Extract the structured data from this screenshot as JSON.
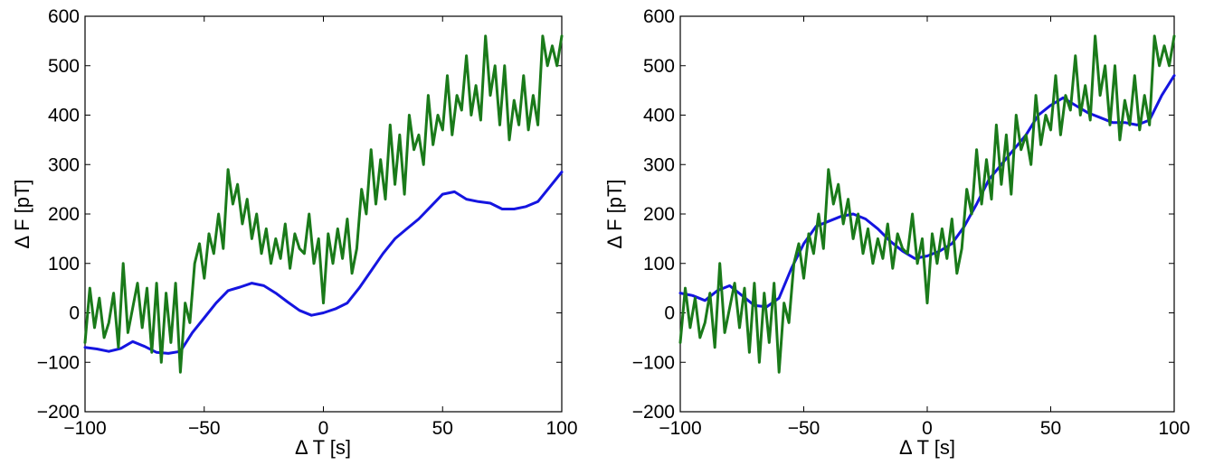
{
  "chart_data": [
    {
      "type": "line",
      "xlabel": "Δ T [s]",
      "ylabel": "Δ F [pT]",
      "xlim": [
        -100,
        100
      ],
      "ylim": [
        -200,
        600
      ],
      "xticks": [
        -100,
        -50,
        0,
        50,
        100
      ],
      "yticks": [
        -200,
        -100,
        0,
        100,
        200,
        300,
        400,
        500,
        600
      ],
      "xtick_labels": [
        "−100",
        "−50",
        "0",
        "50",
        "100"
      ],
      "ytick_labels": [
        "−200",
        "−100",
        "0",
        "100",
        "200",
        "300",
        "400",
        "500",
        "600"
      ],
      "grid": false,
      "series": [
        {
          "color": "#1515e0",
          "x": [
            -100,
            -95,
            -90,
            -85,
            -80,
            -75,
            -70,
            -65,
            -60,
            -55,
            -50,
            -45,
            -40,
            -35,
            -30,
            -25,
            -20,
            -15,
            -10,
            -5,
            0,
            5,
            10,
            15,
            20,
            25,
            30,
            35,
            40,
            45,
            50,
            55,
            60,
            65,
            70,
            75,
            80,
            85,
            90,
            95,
            100
          ],
          "y": [
            -70,
            -73,
            -78,
            -72,
            -58,
            -68,
            -80,
            -82,
            -78,
            -40,
            -10,
            20,
            45,
            52,
            60,
            55,
            40,
            22,
            5,
            -5,
            0,
            8,
            20,
            50,
            85,
            120,
            150,
            170,
            190,
            215,
            240,
            245,
            230,
            225,
            222,
            210,
            210,
            215,
            225,
            255,
            285
          ]
        },
        {
          "color": "#1a7a1a",
          "x": [
            -100,
            -98,
            -96,
            -94,
            -92,
            -90,
            -88,
            -86,
            -84,
            -82,
            -80,
            -78,
            -76,
            -74,
            -72,
            -70,
            -68,
            -66,
            -64,
            -62,
            -60,
            -58,
            -56,
            -54,
            -52,
            -50,
            -48,
            -46,
            -44,
            -42,
            -40,
            -38,
            -36,
            -34,
            -32,
            -30,
            -28,
            -26,
            -24,
            -22,
            -20,
            -18,
            -16,
            -14,
            -12,
            -10,
            -8,
            -6,
            -4,
            -2,
            0,
            2,
            4,
            6,
            8,
            10,
            12,
            14,
            16,
            18,
            20,
            22,
            24,
            26,
            28,
            30,
            32,
            34,
            36,
            38,
            40,
            42,
            44,
            46,
            48,
            50,
            52,
            54,
            56,
            58,
            60,
            62,
            64,
            66,
            68,
            70,
            72,
            74,
            76,
            78,
            80,
            82,
            84,
            86,
            88,
            90,
            92,
            94,
            96,
            98,
            100
          ],
          "y": [
            -60,
            50,
            -30,
            30,
            -50,
            -20,
            40,
            -70,
            100,
            -40,
            10,
            60,
            -30,
            50,
            -80,
            60,
            -100,
            40,
            -60,
            60,
            -120,
            20,
            -20,
            100,
            140,
            70,
            160,
            120,
            200,
            130,
            290,
            220,
            260,
            180,
            230,
            150,
            200,
            120,
            170,
            100,
            150,
            110,
            180,
            90,
            160,
            130,
            120,
            200,
            100,
            150,
            20,
            160,
            100,
            170,
            110,
            190,
            80,
            130,
            250,
            200,
            330,
            220,
            310,
            230,
            380,
            260,
            360,
            240,
            400,
            330,
            360,
            300,
            440,
            340,
            400,
            370,
            480,
            360,
            440,
            410,
            520,
            400,
            460,
            390,
            560,
            440,
            500,
            380,
            500,
            350,
            430,
            380,
            480,
            370,
            440,
            380,
            560,
            500,
            540,
            500,
            560
          ]
        }
      ]
    },
    {
      "type": "line",
      "xlabel": "Δ T [s]",
      "ylabel": "Δ F [pT]",
      "xlim": [
        -100,
        100
      ],
      "ylim": [
        -200,
        600
      ],
      "xticks": [
        -100,
        -50,
        0,
        50,
        100
      ],
      "yticks": [
        -200,
        -100,
        0,
        100,
        200,
        300,
        400,
        500,
        600
      ],
      "xtick_labels": [
        "−100",
        "−50",
        "0",
        "50",
        "100"
      ],
      "ytick_labels": [
        "−200",
        "−100",
        "0",
        "100",
        "200",
        "300",
        "400",
        "500",
        "600"
      ],
      "grid": false,
      "series": [
        {
          "color": "#1515e0",
          "x": [
            -100,
            -95,
            -90,
            -85,
            -80,
            -75,
            -70,
            -65,
            -60,
            -55,
            -50,
            -45,
            -40,
            -35,
            -30,
            -25,
            -20,
            -15,
            -10,
            -5,
            0,
            5,
            10,
            15,
            20,
            25,
            30,
            35,
            40,
            45,
            50,
            55,
            60,
            65,
            70,
            75,
            80,
            85,
            90,
            95,
            100
          ],
          "y": [
            40,
            35,
            25,
            45,
            55,
            35,
            15,
            12,
            30,
            90,
            140,
            175,
            185,
            195,
            200,
            190,
            170,
            145,
            125,
            110,
            115,
            125,
            140,
            175,
            220,
            270,
            300,
            330,
            360,
            400,
            420,
            435,
            420,
            405,
            395,
            385,
            385,
            380,
            390,
            440,
            480
          ]
        },
        {
          "color": "#1a7a1a",
          "x": [
            -100,
            -98,
            -96,
            -94,
            -92,
            -90,
            -88,
            -86,
            -84,
            -82,
            -80,
            -78,
            -76,
            -74,
            -72,
            -70,
            -68,
            -66,
            -64,
            -62,
            -60,
            -58,
            -56,
            -54,
            -52,
            -50,
            -48,
            -46,
            -44,
            -42,
            -40,
            -38,
            -36,
            -34,
            -32,
            -30,
            -28,
            -26,
            -24,
            -22,
            -20,
            -18,
            -16,
            -14,
            -12,
            -10,
            -8,
            -6,
            -4,
            -2,
            0,
            2,
            4,
            6,
            8,
            10,
            12,
            14,
            16,
            18,
            20,
            22,
            24,
            26,
            28,
            30,
            32,
            34,
            36,
            38,
            40,
            42,
            44,
            46,
            48,
            50,
            52,
            54,
            56,
            58,
            60,
            62,
            64,
            66,
            68,
            70,
            72,
            74,
            76,
            78,
            80,
            82,
            84,
            86,
            88,
            90,
            92,
            94,
            96,
            98,
            100
          ],
          "y": [
            -60,
            50,
            -30,
            30,
            -50,
            -20,
            40,
            -70,
            100,
            -40,
            10,
            60,
            -30,
            50,
            -80,
            60,
            -100,
            40,
            -60,
            60,
            -120,
            20,
            -20,
            100,
            140,
            70,
            160,
            120,
            200,
            130,
            290,
            220,
            260,
            180,
            230,
            150,
            200,
            120,
            170,
            100,
            150,
            110,
            180,
            90,
            160,
            130,
            120,
            200,
            100,
            150,
            20,
            160,
            100,
            170,
            110,
            190,
            80,
            130,
            250,
            200,
            330,
            220,
            310,
            230,
            380,
            260,
            360,
            240,
            400,
            330,
            360,
            300,
            440,
            340,
            400,
            370,
            480,
            360,
            440,
            410,
            520,
            400,
            460,
            390,
            560,
            440,
            500,
            380,
            500,
            350,
            430,
            380,
            480,
            370,
            440,
            380,
            560,
            500,
            540,
            500,
            560
          ]
        }
      ]
    }
  ]
}
